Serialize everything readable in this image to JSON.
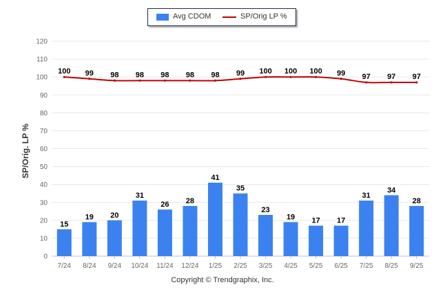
{
  "chart_data": {
    "type": "bar",
    "categories": [
      "7/24",
      "8/24",
      "9/24",
      "10/24",
      "11/24",
      "12/24",
      "1/25",
      "2/25",
      "3/25",
      "4/25",
      "5/25",
      "6/25",
      "7/25",
      "8/25",
      "9/25"
    ],
    "series": [
      {
        "name": "Avg CDOM",
        "kind": "bar",
        "color": "#3b82f0",
        "values": [
          15,
          19,
          20,
          31,
          26,
          28,
          41,
          35,
          23,
          19,
          17,
          17,
          31,
          34,
          28
        ]
      },
      {
        "name": "SP/Orig LP %",
        "kind": "line",
        "color": "#c00000",
        "values": [
          100,
          99,
          98,
          98,
          98,
          98,
          98,
          99,
          100,
          100,
          100,
          99,
          97,
          97,
          97
        ]
      }
    ],
    "ylabel": "SP/Orig. LP %",
    "ylim": [
      0,
      120
    ],
    "yticks": [
      0,
      10,
      20,
      30,
      40,
      50,
      60,
      70,
      80,
      90,
      100,
      110,
      120
    ],
    "grid": true,
    "legend_position": "top"
  },
  "legend": {
    "bar_label": "Avg CDOM",
    "line_label": "SP/Orig LP %"
  },
  "footer": {
    "copyright": "Copyright © Trendgraphix, Inc."
  },
  "colors": {
    "grid": "#e6e6e6",
    "axis_text": "#666666",
    "label_text": "#000000"
  }
}
